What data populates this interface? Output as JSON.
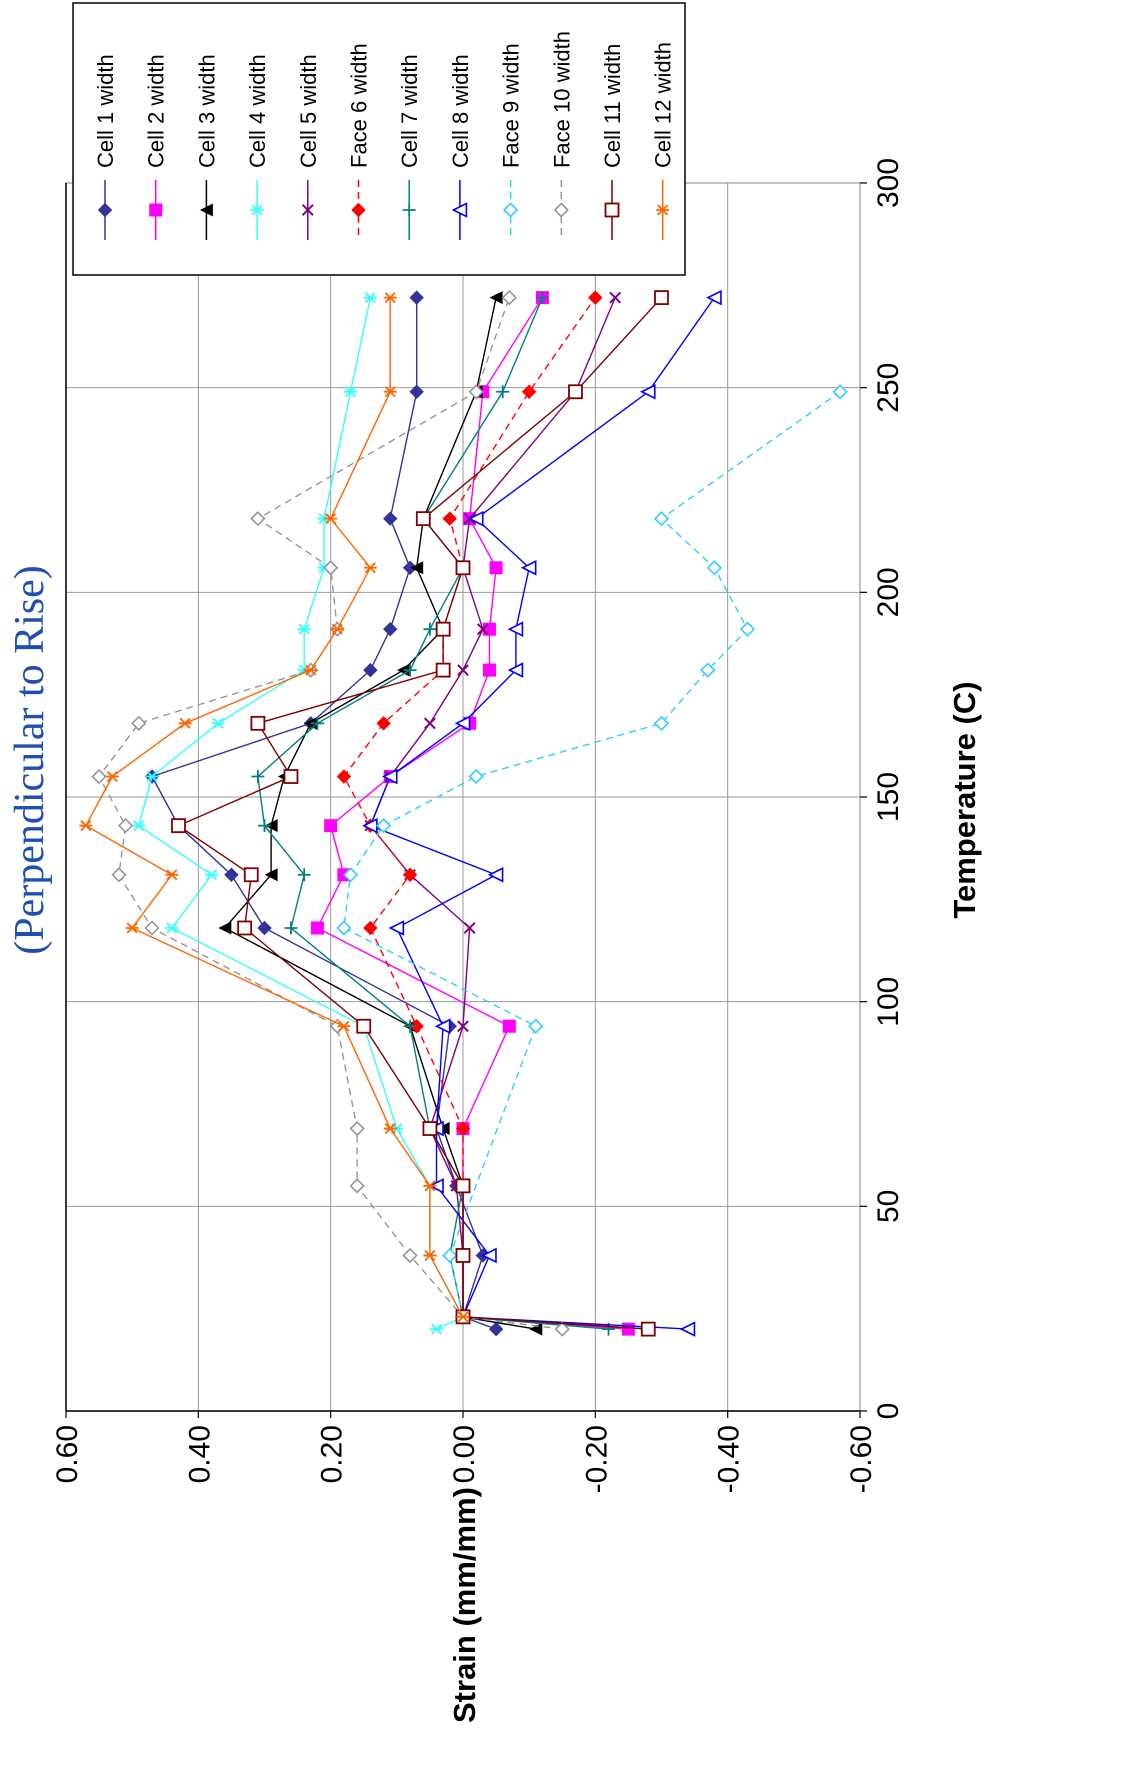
{
  "chart_data": {
    "type": "line",
    "title": "(Perpendicular to Rise)",
    "xlabel": "Temperature (C)",
    "ylabel": "Strain (mm/mm)",
    "xlim": [
      0,
      300
    ],
    "ylim": [
      -0.6,
      0.6
    ],
    "x_ticks": [
      "0",
      "50",
      "100",
      "150",
      "200",
      "250",
      "300"
    ],
    "y_ticks": [
      "0.60",
      "0.40",
      "0.20",
      "0.00",
      "-0.20",
      "-0.40",
      "-0.60"
    ],
    "grid": true,
    "legend_position": "top-right",
    "series": [
      {
        "name": "Cell 1 width",
        "color": "#333399",
        "marker": "diamond",
        "dash": false,
        "points": [
          [
            20,
            -0.05
          ],
          [
            23,
            0.0
          ],
          [
            38,
            -0.03
          ],
          [
            55,
            0.01
          ],
          [
            69,
            0.04
          ],
          [
            94,
            0.02
          ],
          [
            118,
            0.3
          ],
          [
            131,
            0.35
          ],
          [
            143,
            0.43
          ],
          [
            155,
            0.47
          ],
          [
            168,
            0.23
          ],
          [
            181,
            0.14
          ],
          [
            191,
            0.11
          ],
          [
            206,
            0.08
          ],
          [
            218,
            0.11
          ],
          [
            249,
            0.07
          ],
          [
            272,
            0.07
          ]
        ]
      },
      {
        "name": "Cell 2 width",
        "color": "#ff00ff",
        "marker": "square",
        "dash": false,
        "points": [
          [
            20,
            -0.25
          ],
          [
            23,
            0.0
          ],
          [
            38,
            0.0
          ],
          [
            55,
            0.0
          ],
          [
            69,
            0.0
          ],
          [
            94,
            -0.07
          ],
          [
            118,
            0.22
          ],
          [
            131,
            0.18
          ],
          [
            143,
            0.2
          ],
          [
            155,
            0.11
          ],
          [
            168,
            -0.01
          ],
          [
            181,
            -0.04
          ],
          [
            191,
            -0.04
          ],
          [
            206,
            -0.05
          ],
          [
            218,
            -0.01
          ],
          [
            249,
            -0.03
          ],
          [
            272,
            -0.12
          ]
        ]
      },
      {
        "name": "Cell 3 width",
        "color": "#000000",
        "marker": "triangle",
        "dash": false,
        "points": [
          [
            20,
            -0.11
          ],
          [
            23,
            0.0
          ],
          [
            38,
            0.0
          ],
          [
            55,
            0.0
          ],
          [
            69,
            0.03
          ],
          [
            94,
            0.08
          ],
          [
            118,
            0.36
          ],
          [
            131,
            0.29
          ],
          [
            143,
            0.29
          ],
          [
            155,
            0.27
          ],
          [
            168,
            0.23
          ],
          [
            181,
            0.09
          ],
          [
            191,
            0.03
          ],
          [
            206,
            0.07
          ],
          [
            218,
            0.06
          ],
          [
            249,
            -0.02
          ],
          [
            272,
            -0.05
          ]
        ]
      },
      {
        "name": "Cell 4 width",
        "color": "#33ffff",
        "marker": "star",
        "dash": false,
        "points": [
          [
            20,
            0.04
          ],
          [
            23,
            0.0
          ],
          [
            38,
            0.05
          ],
          [
            55,
            0.05
          ],
          [
            69,
            0.1
          ],
          [
            94,
            0.15
          ],
          [
            118,
            0.44
          ],
          [
            131,
            0.38
          ],
          [
            143,
            0.49
          ],
          [
            155,
            0.47
          ],
          [
            168,
            0.37
          ],
          [
            181,
            0.24
          ],
          [
            191,
            0.24
          ],
          [
            206,
            0.21
          ],
          [
            218,
            0.21
          ],
          [
            249,
            0.17
          ],
          [
            272,
            0.14
          ]
        ]
      },
      {
        "name": "Cell 5 width",
        "color": "#800080",
        "marker": "x",
        "dash": false,
        "points": [
          [
            20,
            -0.28
          ],
          [
            23,
            0.0
          ],
          [
            38,
            0.0
          ],
          [
            55,
            0.01
          ],
          [
            69,
            0.05
          ],
          [
            94,
            0.0
          ],
          [
            118,
            -0.01
          ],
          [
            131,
            0.08
          ],
          [
            143,
            0.14
          ],
          [
            155,
            0.11
          ],
          [
            168,
            0.05
          ],
          [
            181,
            0.0
          ],
          [
            191,
            -0.03
          ],
          [
            206,
            0.0
          ],
          [
            218,
            -0.01
          ],
          [
            249,
            -0.17
          ],
          [
            272,
            -0.23
          ]
        ]
      },
      {
        "name": "Face 6 width",
        "color": "#ff0000",
        "marker": "diamond",
        "dash": true,
        "points": [
          [
            20,
            -0.28
          ],
          [
            23,
            0.0
          ],
          [
            38,
            0.0
          ],
          [
            55,
            0.0
          ],
          [
            69,
            0.0
          ],
          [
            94,
            0.07
          ],
          [
            118,
            0.14
          ],
          [
            131,
            0.08
          ],
          [
            143,
            0.14
          ],
          [
            155,
            0.18
          ],
          [
            168,
            0.12
          ],
          [
            181,
            0.03
          ],
          [
            191,
            0.03
          ],
          [
            206,
            0.0
          ],
          [
            218,
            0.02
          ],
          [
            249,
            -0.1
          ],
          [
            272,
            -0.2
          ]
        ]
      },
      {
        "name": "Cell 7 width",
        "color": "#008080",
        "marker": "plus",
        "dash": false,
        "points": [
          [
            20,
            -0.22
          ],
          [
            23,
            0.0
          ],
          [
            38,
            0.02
          ],
          [
            55,
            0.0
          ],
          [
            69,
            0.05
          ],
          [
            94,
            0.08
          ],
          [
            118,
            0.26
          ],
          [
            131,
            0.24
          ],
          [
            143,
            0.3
          ],
          [
            155,
            0.31
          ],
          [
            168,
            0.22
          ],
          [
            181,
            0.08
          ],
          [
            191,
            0.05
          ],
          [
            206,
            0.0
          ],
          [
            218,
            0.06
          ],
          [
            249,
            -0.06
          ],
          [
            272,
            -0.12
          ]
        ]
      },
      {
        "name": "Cell 8 width",
        "color": "#0000ff",
        "marker": "triangle-open",
        "dash": false,
        "points": [
          [
            20,
            -0.34
          ],
          [
            23,
            0.0
          ],
          [
            38,
            -0.04
          ],
          [
            55,
            0.04
          ],
          [
            69,
            0.04
          ],
          [
            94,
            0.03
          ],
          [
            118,
            0.1
          ],
          [
            131,
            -0.05
          ],
          [
            143,
            0.14
          ],
          [
            155,
            0.11
          ],
          [
            168,
            0.0
          ],
          [
            181,
            -0.08
          ],
          [
            191,
            -0.08
          ],
          [
            206,
            -0.1
          ],
          [
            218,
            -0.02
          ],
          [
            249,
            -0.28
          ],
          [
            272,
            -0.38
          ]
        ]
      },
      {
        "name": "Face 9 width",
        "color": "#33ccff",
        "marker": "diamond-open",
        "dash": true,
        "points": [
          [
            23,
            0.0
          ],
          [
            38,
            0.02
          ],
          [
            94,
            -0.11
          ],
          [
            118,
            0.18
          ],
          [
            131,
            0.17
          ],
          [
            143,
            0.12
          ],
          [
            155,
            -0.02
          ],
          [
            168,
            -0.3
          ],
          [
            181,
            -0.37
          ],
          [
            191,
            -0.43
          ],
          [
            206,
            -0.38
          ],
          [
            218,
            -0.3
          ],
          [
            249,
            -0.57
          ]
        ]
      },
      {
        "name": "Face 10 width",
        "color": "#969696",
        "marker": "diamond-open",
        "dash": true,
        "points": [
          [
            20,
            -0.15
          ],
          [
            23,
            0.0
          ],
          [
            38,
            0.08
          ],
          [
            55,
            0.16
          ],
          [
            69,
            0.16
          ],
          [
            94,
            0.19
          ],
          [
            118,
            0.47
          ],
          [
            131,
            0.52
          ],
          [
            143,
            0.51
          ],
          [
            155,
            0.55
          ],
          [
            168,
            0.49
          ],
          [
            181,
            0.23
          ],
          [
            191,
            0.19
          ],
          [
            206,
            0.2
          ],
          [
            218,
            0.31
          ],
          [
            249,
            -0.02
          ],
          [
            272,
            -0.07
          ]
        ]
      },
      {
        "name": "Cell 11 width",
        "color": "#800000",
        "marker": "square-open",
        "dash": false,
        "points": [
          [
            20,
            -0.28
          ],
          [
            23,
            0.0
          ],
          [
            38,
            0.0
          ],
          [
            55,
            0.0
          ],
          [
            69,
            0.05
          ],
          [
            94,
            0.15
          ],
          [
            118,
            0.33
          ],
          [
            131,
            0.32
          ],
          [
            143,
            0.43
          ],
          [
            155,
            0.26
          ],
          [
            168,
            0.31
          ],
          [
            181,
            0.03
          ],
          [
            191,
            0.03
          ],
          [
            206,
            0.0
          ],
          [
            218,
            0.06
          ],
          [
            249,
            -0.17
          ],
          [
            272,
            -0.3
          ]
        ]
      },
      {
        "name": "Cell 12 width",
        "color": "#ff6600",
        "marker": "star",
        "dash": false,
        "points": [
          [
            23,
            0.0
          ],
          [
            38,
            0.05
          ],
          [
            55,
            0.05
          ],
          [
            69,
            0.11
          ],
          [
            94,
            0.18
          ],
          [
            118,
            0.5
          ],
          [
            131,
            0.44
          ],
          [
            143,
            0.57
          ],
          [
            155,
            0.53
          ],
          [
            168,
            0.42
          ],
          [
            181,
            0.23
          ],
          [
            191,
            0.19
          ],
          [
            206,
            0.14
          ],
          [
            218,
            0.2
          ],
          [
            249,
            0.11
          ],
          [
            272,
            0.11
          ]
        ]
      }
    ]
  }
}
